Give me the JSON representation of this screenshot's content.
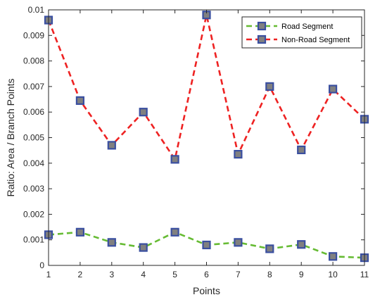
{
  "chart_data": {
    "type": "line",
    "xlabel": "Points",
    "ylabel": "Ratio: Area / Branch Points",
    "x": [
      1,
      2,
      3,
      4,
      5,
      6,
      7,
      8,
      9,
      10,
      11
    ],
    "xlim": [
      1,
      11
    ],
    "ylim": [
      0,
      0.01
    ],
    "xticks": [
      "1",
      "2",
      "3",
      "4",
      "5",
      "6",
      "7",
      "8",
      "9",
      "10",
      "11"
    ],
    "yticks": [
      "0",
      "0.001",
      "0.002",
      "0.003",
      "0.004",
      "0.005",
      "0.006",
      "0.007",
      "0.008",
      "0.009",
      "0.01"
    ],
    "grid": false,
    "legend_position": "top-right",
    "marker": {
      "shape": "square",
      "edge": "#3a4fa0",
      "fill": "#808080"
    },
    "series": [
      {
        "name": "Road Segment",
        "color": "#66bb33",
        "style": "dashed",
        "values": [
          0.0012,
          0.0013,
          0.0009,
          0.0007,
          0.0013,
          0.0008,
          0.0009,
          0.00065,
          0.00082,
          0.00035,
          0.0003
        ]
      },
      {
        "name": "Non-Road Segment",
        "color": "#ee2222",
        "style": "dashed",
        "values": [
          0.0096,
          0.00645,
          0.0047,
          0.006,
          0.00415,
          0.0098,
          0.00435,
          0.007,
          0.00452,
          0.0069,
          0.00572
        ]
      }
    ]
  }
}
